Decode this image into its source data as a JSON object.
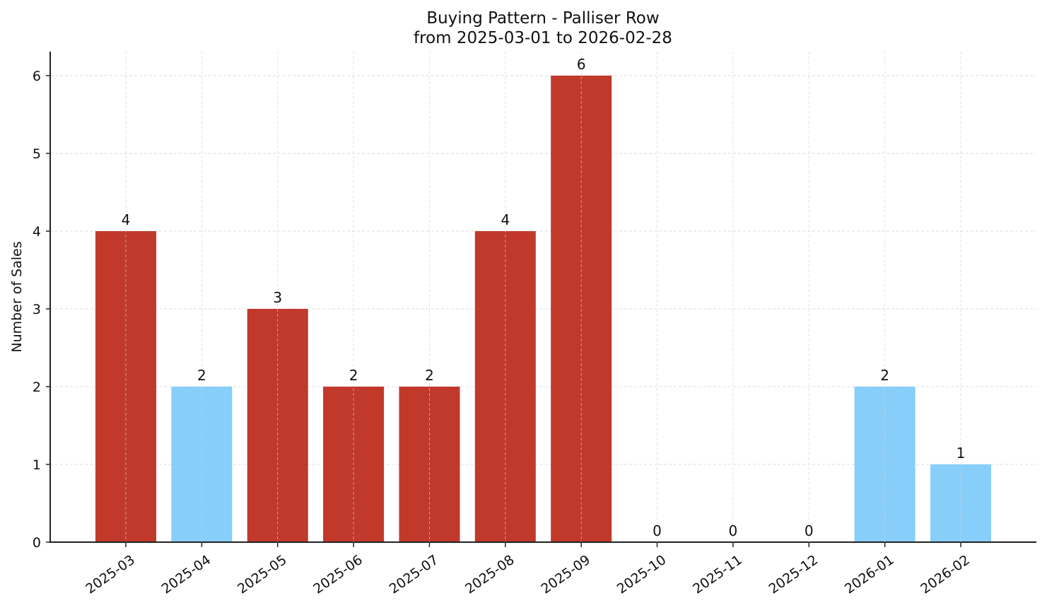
{
  "chart_data": {
    "type": "bar",
    "title": "Buying Pattern - Palliser Row",
    "subtitle": "from 2025-03-01 to 2026-02-28",
    "xlabel": "",
    "ylabel": "Number of Sales",
    "categories": [
      "2025-03",
      "2025-04",
      "2025-05",
      "2025-06",
      "2025-07",
      "2025-08",
      "2025-09",
      "2025-10",
      "2025-11",
      "2025-12",
      "2026-01",
      "2026-02"
    ],
    "values": [
      4,
      2,
      3,
      2,
      2,
      4,
      6,
      0,
      0,
      0,
      2,
      1
    ],
    "bar_colors": [
      "#C0392B",
      "#87CEFA",
      "#C0392B",
      "#C0392B",
      "#C0392B",
      "#C0392B",
      "#C0392B",
      "#C0392B",
      "#C0392B",
      "#C0392B",
      "#87CEFA",
      "#87CEFA"
    ],
    "ylim": [
      0,
      6.3
    ],
    "yticks": [
      0,
      1,
      2,
      3,
      4,
      5,
      6
    ],
    "grid": true,
    "legend": null,
    "data_labels": true,
    "xtick_rotation": 35
  },
  "colors": {
    "high": "#C0392B",
    "low": "#87CEFA",
    "grid": "#d3d3d3",
    "axis": "#222222"
  }
}
